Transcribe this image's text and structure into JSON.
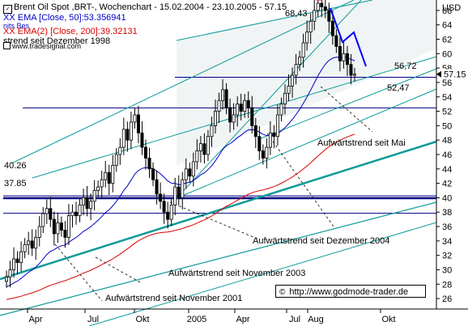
{
  "header": {
    "line1": "Brent Oil Spot ,BRT-, Wochenchart - 15.02.2004 - 23.10.2005 - 57.15",
    "line2": "XX EMA [Close, 50]:53.356941",
    "line2b": "nits Bes",
    "line3": "XX EMA(2) [Close, 200]:39.32131",
    "line4": "strend seit Dezember 1998",
    "line5": "www.tradesignal.com"
  },
  "copyright": "http://www.godmode-trader.de",
  "colors": {
    "candle": "#000000",
    "ema50": "#0000c8",
    "ema200": "#d80000",
    "trendline": "#0f9a9a",
    "channel_fill": "#eef3f3",
    "horizontal": "#000080",
    "forecast": "#0000ff",
    "peak": "#ff4040",
    "dashed": "#000000"
  },
  "chart_data": {
    "type": "candlestick",
    "title": "Brent Oil Spot ,BRT-, Wochenchart - 15.02.2004 - 23.10.2005 - 57.15",
    "ylabel": "USD",
    "ylim": [
      25,
      70
    ],
    "y_ticks": [
      26,
      28,
      30,
      32,
      34,
      36,
      38,
      40,
      42,
      44,
      46,
      48,
      50,
      52,
      54,
      56,
      58,
      60,
      62,
      64,
      66
    ],
    "x_tick_labels": [
      "Apr",
      "Jul",
      "Okt",
      "2005",
      "Apr",
      "Jul",
      "Aug",
      "Okt"
    ],
    "last_close": 57.15,
    "series": [
      {
        "name": "XX EMA [Close, 50]",
        "last": 53.356941
      },
      {
        "name": "XX EMA(2) [Close, 200]",
        "last": 39.32131
      }
    ],
    "weekly_close": [
      29.0,
      30.0,
      31.5,
      31.0,
      32.5,
      33.5,
      34.0,
      33.0,
      34.5,
      36.0,
      37.8,
      38.5,
      37.0,
      35.0,
      36.5,
      35.5,
      34.5,
      37.5,
      38.0,
      37.5,
      39.0,
      40.0,
      38.5,
      39.5,
      41.0,
      41.5,
      42.5,
      43.5,
      42.0,
      44.5,
      46.0,
      47.0,
      49.5,
      48.0,
      50.5,
      51.5,
      49.0,
      47.0,
      45.5,
      44.0,
      42.5,
      40.5,
      39.5,
      38.0,
      37.0,
      39.0,
      41.5,
      40.0,
      42.5,
      44.0,
      43.0,
      45.0,
      46.5,
      47.5,
      46.0,
      48.5,
      50.0,
      52.0,
      53.5,
      55.0,
      52.5,
      50.5,
      51.5,
      53.0,
      52.0,
      53.5,
      52.5,
      50.0,
      48.5,
      46.5,
      45.5,
      47.0,
      49.0,
      48.5,
      51.5,
      53.0,
      54.5,
      55.5,
      57.0,
      58.5,
      59.5,
      61.5,
      63.0,
      64.5,
      66.0,
      67.0,
      66.5,
      66.0,
      64.5,
      62.5,
      61.0,
      59.0,
      60.0,
      58.5,
      57.0,
      57.15
    ],
    "horizontal_levels": [
      {
        "value": 68.43,
        "label": "68,43"
      },
      {
        "value": 56.72,
        "label": "56,72"
      },
      {
        "value": 52.47,
        "label": "52,47"
      },
      {
        "value": 40.26,
        "label": "40.26"
      },
      {
        "value": 37.85,
        "label": "37.85"
      }
    ],
    "annotations": [
      "Aufwärtstrend seit Mai",
      "Aufwärtstrend seit Dezember 2004",
      "Aufwärtstrend seit November 2003",
      "Aufwärtstrend seit November 2001"
    ]
  }
}
